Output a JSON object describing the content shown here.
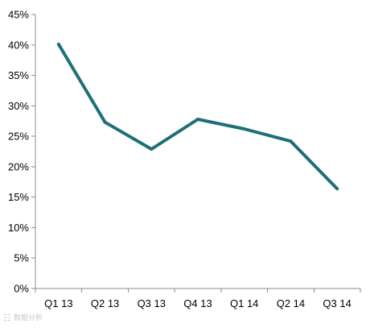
{
  "chart_data": {
    "type": "line",
    "categories": [
      "Q1 13",
      "Q2 13",
      "Q3 13",
      "Q4 13",
      "Q1 14",
      "Q2 14",
      "Q3 14"
    ],
    "series": [
      {
        "values": [
          40.1,
          27.3,
          22.9,
          27.8,
          26.2,
          24.2,
          16.4
        ],
        "color": "#1f6f78"
      }
    ],
    "y_ticks": [
      "0%",
      "5%",
      "10%",
      "15%",
      "20%",
      "25%",
      "30%",
      "35%",
      "40%",
      "45%"
    ],
    "ylim": [
      0,
      45
    ],
    "y_step": 5,
    "title": "",
    "xlabel": "",
    "ylabel": "",
    "grid": false,
    "legend": "none",
    "axis_color": "#8c8c8c"
  },
  "watermark": {
    "icon": "logo-glyph-icon",
    "text": "数据分析"
  }
}
